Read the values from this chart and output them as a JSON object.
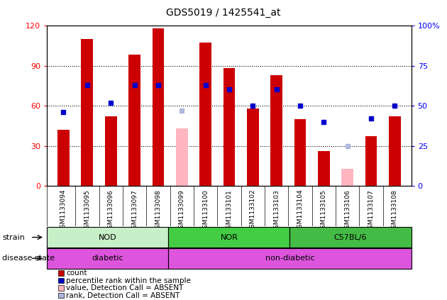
{
  "title": "GDS5019 / 1425541_at",
  "samples": [
    "GSM1133094",
    "GSM1133095",
    "GSM1133096",
    "GSM1133097",
    "GSM1133098",
    "GSM1133099",
    "GSM1133100",
    "GSM1133101",
    "GSM1133102",
    "GSM1133103",
    "GSM1133104",
    "GSM1133105",
    "GSM1133106",
    "GSM1133107",
    "GSM1133108"
  ],
  "count_values": [
    42,
    110,
    52,
    98,
    118,
    null,
    107,
    88,
    58,
    83,
    50,
    26,
    null,
    37,
    52
  ],
  "percentile_values": [
    46,
    63,
    52,
    63,
    63,
    null,
    63,
    60,
    50,
    60,
    50,
    40,
    null,
    42,
    50
  ],
  "absent_count": [
    null,
    null,
    null,
    null,
    null,
    43,
    null,
    null,
    null,
    null,
    null,
    null,
    13,
    null,
    null
  ],
  "absent_percentile": [
    null,
    null,
    null,
    null,
    null,
    47,
    null,
    null,
    null,
    null,
    null,
    null,
    25,
    null,
    null
  ],
  "ylim": [
    0,
    120
  ],
  "y2lim": [
    0,
    100
  ],
  "yticks": [
    0,
    30,
    60,
    90,
    120
  ],
  "y2ticks": [
    0,
    25,
    50,
    75,
    100
  ],
  "y2ticklabels": [
    "0",
    "25",
    "50",
    "75",
    "100%"
  ],
  "bar_color_present": "#cc0000",
  "bar_color_absent": "#ffb6c1",
  "dot_color_present": "#0000cc",
  "dot_color_absent": "#b0b8e0",
  "bar_width": 0.5,
  "legend_items": [
    {
      "label": "count",
      "color": "#cc0000"
    },
    {
      "label": "percentile rank within the sample",
      "color": "#0000cc"
    },
    {
      "label": "value, Detection Call = ABSENT",
      "color": "#ffb6c1"
    },
    {
      "label": "rank, Detection Call = ABSENT",
      "color": "#b0b8e0"
    }
  ],
  "strain_groups": [
    {
      "label": "NOD",
      "start": 0,
      "end": 4,
      "color": "#c0f0c0"
    },
    {
      "label": "NOR",
      "start": 5,
      "end": 9,
      "color": "#44cc44"
    },
    {
      "label": "C57BL/6",
      "start": 10,
      "end": 14,
      "color": "#44cc44"
    }
  ],
  "disease_groups": [
    {
      "label": "diabetic",
      "start": 0,
      "end": 4,
      "color": "#ee66ee"
    },
    {
      "label": "non-diabetic",
      "start": 5,
      "end": 14,
      "color": "#ee66ee"
    }
  ]
}
